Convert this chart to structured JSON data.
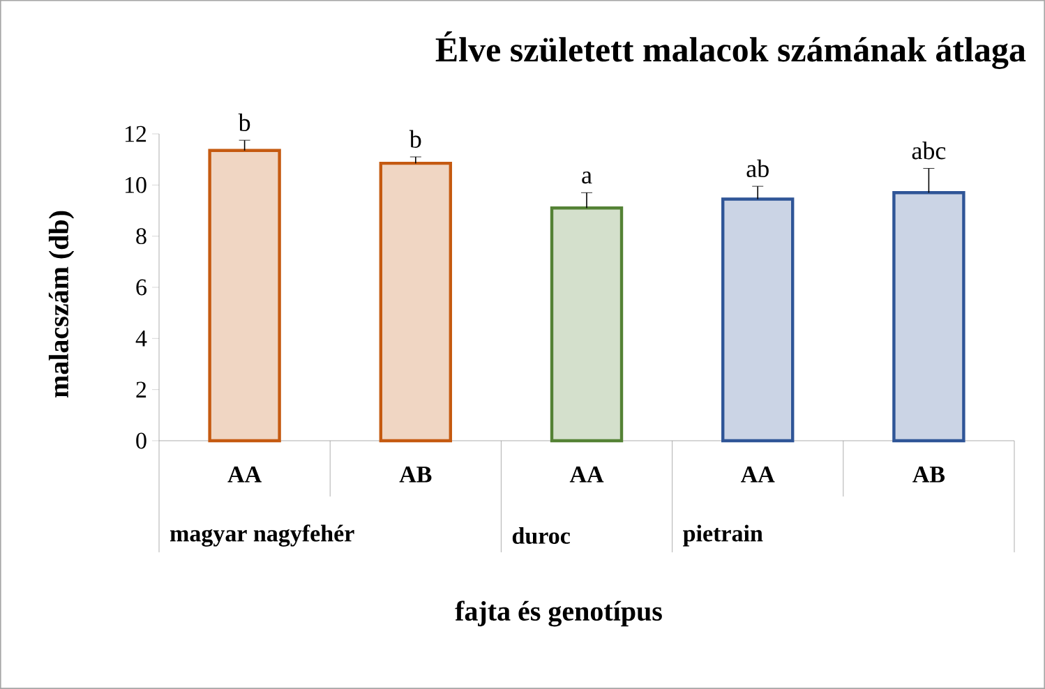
{
  "chart_data": {
    "type": "bar",
    "title": "Élve született malacok számának átlaga",
    "xlabel": "fajta és genotípus",
    "ylabel": "malacszám (db)",
    "categories": [
      "AA",
      "AB",
      "AA",
      "AA",
      "AB"
    ],
    "values": [
      11.35,
      10.85,
      9.1,
      9.45,
      9.7
    ],
    "errors": [
      0.4,
      0.25,
      0.6,
      0.5,
      0.95
    ],
    "colors": [
      "#c55a11",
      "#c55a11",
      "#548235",
      "#2f5597",
      "#2f5597"
    ],
    "ylim": [
      0,
      12
    ],
    "yticks": [
      0,
      2,
      4,
      6,
      8,
      10,
      12
    ],
    "annotations": [
      "b",
      "b",
      "a",
      "ab",
      "abc",
      "magyar nagyfehér",
      "duroc",
      "pietrain"
    ]
  }
}
